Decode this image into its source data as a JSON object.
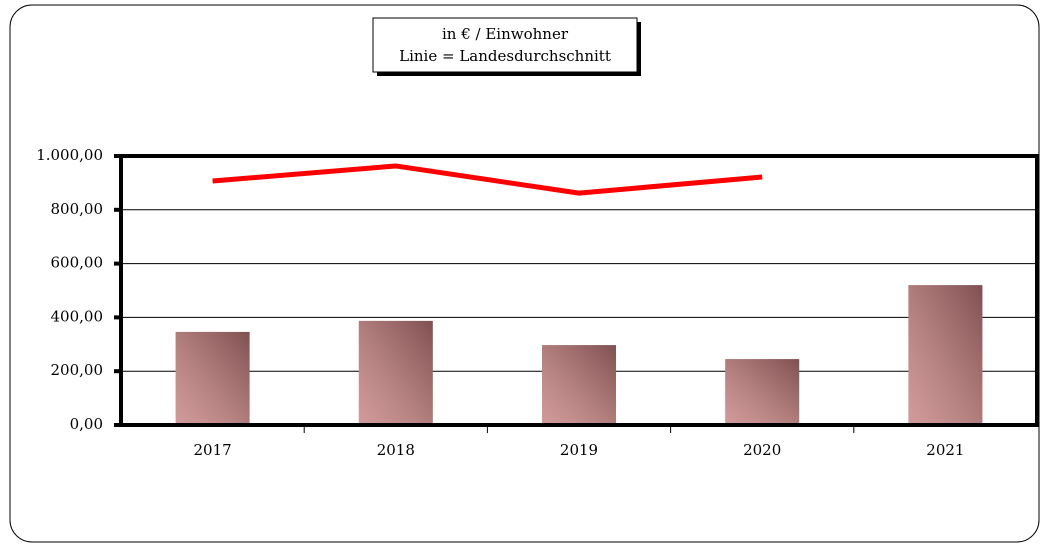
{
  "chart_data": {
    "type": "bar",
    "title": [
      "in € / Einwohner",
      "Linie = Landesdurchschnitt"
    ],
    "categories": [
      "2017",
      "2018",
      "2019",
      "2020",
      "2021"
    ],
    "series": [
      {
        "type": "bar",
        "color": "#c47a7a",
        "values": [
          346,
          387,
          297,
          245,
          520
        ]
      },
      {
        "type": "line",
        "color": "#ff0000",
        "values": [
          907,
          963,
          862,
          922,
          null
        ]
      }
    ],
    "ylim": [
      0,
      1000
    ],
    "yticks": [
      {
        "value": 0,
        "label": "0,00"
      },
      {
        "value": 200,
        "label": "200,00"
      },
      {
        "value": 400,
        "label": "400,00"
      },
      {
        "value": 600,
        "label": "600,00"
      },
      {
        "value": 800,
        "label": "800,00"
      },
      {
        "value": 1000,
        "label": "1.000,00"
      }
    ],
    "grid": true
  }
}
